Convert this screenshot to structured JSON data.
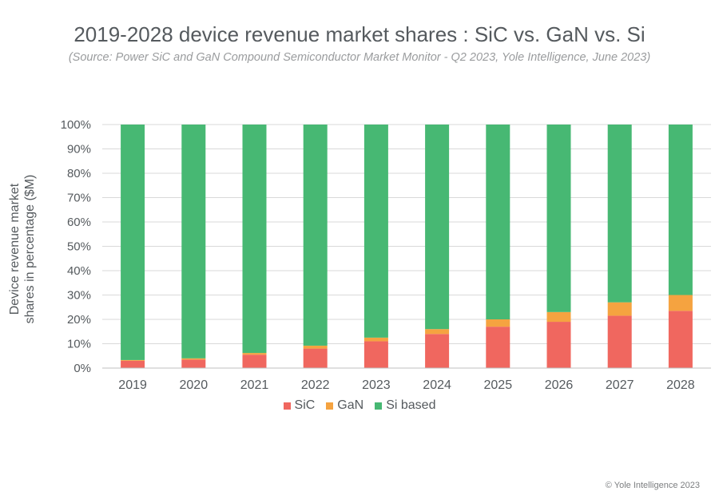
{
  "chart_data": {
    "type": "bar",
    "stacked": true,
    "title": "2019-2028 device revenue market shares : SiC vs. GaN vs. Si",
    "subtitle": "(Source: Power SiC and GaN Compound Semiconductor Market Monitor - Q2 2023, Yole Intelligence, June 2023)",
    "ylabel_line1": "Device revenue market",
    "ylabel_line2": "shares  in percentage ($M)",
    "xlabel": "",
    "categories": [
      "2019",
      "2020",
      "2021",
      "2022",
      "2023",
      "2024",
      "2025",
      "2026",
      "2027",
      "2028"
    ],
    "ylim": [
      0,
      100
    ],
    "yticks": [
      "0%",
      "10%",
      "20%",
      "30%",
      "40%",
      "50%",
      "60%",
      "70%",
      "80%",
      "90%",
      "100%"
    ],
    "legend_position": "bottom",
    "series": [
      {
        "name": "SiC",
        "color": "#f0675f",
        "values": [
          3,
          3.5,
          5.5,
          8,
          11,
          14,
          17,
          19,
          21.5,
          23.5
        ]
      },
      {
        "name": "GaN",
        "color": "#f5a340",
        "values": [
          0.3,
          0.5,
          0.7,
          1.2,
          1.5,
          2,
          3,
          4,
          5.5,
          6.5
        ]
      },
      {
        "name": "Si based",
        "color": "#47b873",
        "values": [
          96.7,
          96,
          93.8,
          90.8,
          87.5,
          84,
          80,
          77,
          73,
          70
        ]
      }
    ]
  },
  "copyright": "© Yole Intelligence 2023"
}
